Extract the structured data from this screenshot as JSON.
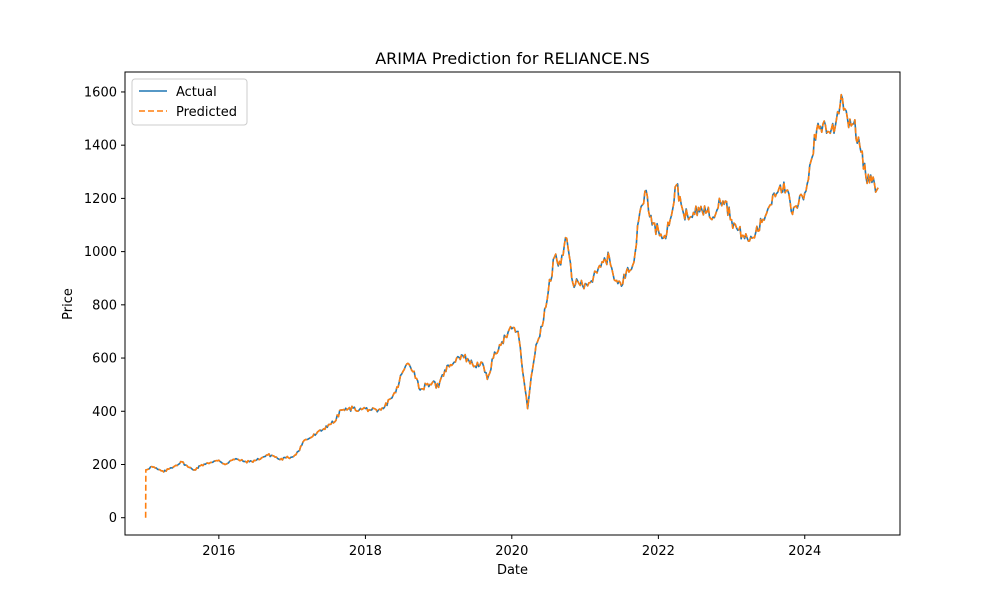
{
  "chart_data": {
    "type": "line",
    "title": "ARIMA Prediction for RELIANCE.NS",
    "xlabel": "Date",
    "ylabel": "Price",
    "xlim": [
      "2014-09-20",
      "2025-04-20"
    ],
    "ylim": [
      -65,
      1675
    ],
    "x_ticks": [
      "2016",
      "2018",
      "2020",
      "2022",
      "2024"
    ],
    "x_tick_dates": [
      "2016-01-01",
      "2018-01-01",
      "2020-01-01",
      "2022-01-01",
      "2024-01-01"
    ],
    "y_ticks": [
      0,
      200,
      400,
      600,
      800,
      1000,
      1200,
      1400,
      1600
    ],
    "grid": false,
    "legend_position": "upper left",
    "series": [
      {
        "name": "Actual",
        "color": "#1f77b4",
        "style": "solid",
        "points": [
          [
            "2015-01-01",
            180
          ],
          [
            "2015-02-01",
            192
          ],
          [
            "2015-03-01",
            182
          ],
          [
            "2015-04-01",
            172
          ],
          [
            "2015-05-01",
            185
          ],
          [
            "2015-06-01",
            197
          ],
          [
            "2015-07-01",
            210
          ],
          [
            "2015-08-01",
            190
          ],
          [
            "2015-09-01",
            180
          ],
          [
            "2015-10-01",
            195
          ],
          [
            "2015-11-01",
            205
          ],
          [
            "2015-12-01",
            208
          ],
          [
            "2016-01-01",
            216
          ],
          [
            "2016-02-01",
            200
          ],
          [
            "2016-03-01",
            215
          ],
          [
            "2016-04-01",
            220
          ],
          [
            "2016-05-01",
            212
          ],
          [
            "2016-06-01",
            210
          ],
          [
            "2016-07-01",
            215
          ],
          [
            "2016-08-01",
            225
          ],
          [
            "2016-09-01",
            236
          ],
          [
            "2016-10-01",
            232
          ],
          [
            "2016-11-01",
            218
          ],
          [
            "2016-12-01",
            225
          ],
          [
            "2017-01-01",
            228
          ],
          [
            "2017-02-01",
            250
          ],
          [
            "2017-03-01",
            290
          ],
          [
            "2017-04-01",
            300
          ],
          [
            "2017-05-01",
            315
          ],
          [
            "2017-06-01",
            330
          ],
          [
            "2017-07-01",
            350
          ],
          [
            "2017-08-01",
            360
          ],
          [
            "2017-09-01",
            405
          ],
          [
            "2017-10-01",
            405
          ],
          [
            "2017-11-01",
            412
          ],
          [
            "2017-12-01",
            405
          ],
          [
            "2018-01-01",
            410
          ],
          [
            "2018-02-01",
            405
          ],
          [
            "2018-03-01",
            398
          ],
          [
            "2018-04-01",
            410
          ],
          [
            "2018-05-01",
            445
          ],
          [
            "2018-06-01",
            470
          ],
          [
            "2018-07-01",
            540
          ],
          [
            "2018-08-01",
            580
          ],
          [
            "2018-09-01",
            550
          ],
          [
            "2018-10-01",
            480
          ],
          [
            "2018-11-01",
            500
          ],
          [
            "2018-12-01",
            508
          ],
          [
            "2019-01-01",
            490
          ],
          [
            "2019-02-01",
            555
          ],
          [
            "2019-03-01",
            575
          ],
          [
            "2019-04-01",
            600
          ],
          [
            "2019-05-01",
            610
          ],
          [
            "2019-06-01",
            590
          ],
          [
            "2019-07-01",
            570
          ],
          [
            "2019-08-01",
            585
          ],
          [
            "2019-09-01",
            520
          ],
          [
            "2019-10-01",
            600
          ],
          [
            "2019-11-01",
            650
          ],
          [
            "2019-12-01",
            680
          ],
          [
            "2020-01-01",
            710
          ],
          [
            "2020-02-01",
            700
          ],
          [
            "2020-03-01",
            520
          ],
          [
            "2020-03-20",
            410
          ],
          [
            "2020-04-01",
            490
          ],
          [
            "2020-05-01",
            650
          ],
          [
            "2020-06-01",
            720
          ],
          [
            "2020-07-01",
            850
          ],
          [
            "2020-08-01",
            980
          ],
          [
            "2020-09-01",
            950
          ],
          [
            "2020-10-01",
            1050
          ],
          [
            "2020-11-01",
            880
          ],
          [
            "2020-12-01",
            880
          ],
          [
            "2021-01-01",
            880
          ],
          [
            "2021-02-01",
            890
          ],
          [
            "2021-03-01",
            920
          ],
          [
            "2021-04-01",
            960
          ],
          [
            "2021-05-01",
            980
          ],
          [
            "2021-06-01",
            890
          ],
          [
            "2021-07-01",
            870
          ],
          [
            "2021-08-01",
            940
          ],
          [
            "2021-09-01",
            960
          ],
          [
            "2021-10-01",
            1150
          ],
          [
            "2021-11-01",
            1230
          ],
          [
            "2021-12-01",
            1100
          ],
          [
            "2022-01-01",
            1080
          ],
          [
            "2022-02-01",
            1060
          ],
          [
            "2022-03-01",
            1120
          ],
          [
            "2022-04-01",
            1250
          ],
          [
            "2022-05-01",
            1160
          ],
          [
            "2022-06-01",
            1120
          ],
          [
            "2022-07-01",
            1140
          ],
          [
            "2022-08-01",
            1170
          ],
          [
            "2022-09-01",
            1150
          ],
          [
            "2022-10-01",
            1130
          ],
          [
            "2022-11-01",
            1200
          ],
          [
            "2022-12-01",
            1190
          ],
          [
            "2023-01-01",
            1120
          ],
          [
            "2023-02-01",
            1080
          ],
          [
            "2023-03-01",
            1060
          ],
          [
            "2023-04-01",
            1040
          ],
          [
            "2023-05-01",
            1070
          ],
          [
            "2023-06-01",
            1110
          ],
          [
            "2023-07-01",
            1160
          ],
          [
            "2023-08-01",
            1220
          ],
          [
            "2023-09-01",
            1250
          ],
          [
            "2023-10-01",
            1230
          ],
          [
            "2023-11-01",
            1140
          ],
          [
            "2023-12-01",
            1180
          ],
          [
            "2024-01-01",
            1220
          ],
          [
            "2024-02-01",
            1340
          ],
          [
            "2024-03-01",
            1460
          ],
          [
            "2024-04-01",
            1480
          ],
          [
            "2024-05-01",
            1450
          ],
          [
            "2024-06-01",
            1470
          ],
          [
            "2024-07-01",
            1590
          ],
          [
            "2024-08-01",
            1500
          ],
          [
            "2024-09-01",
            1480
          ],
          [
            "2024-10-01",
            1400
          ],
          [
            "2024-11-01",
            1280
          ],
          [
            "2024-12-01",
            1260
          ],
          [
            "2025-01-01",
            1240
          ]
        ]
      },
      {
        "name": "Predicted",
        "color": "#ff7f0e",
        "style": "dashed",
        "points": [
          [
            "2015-01-01",
            0
          ],
          [
            "2015-01-02",
            180
          ],
          [
            "2015-02-01",
            192
          ],
          [
            "2015-03-01",
            182
          ],
          [
            "2015-04-01",
            172
          ],
          [
            "2015-05-01",
            185
          ],
          [
            "2015-06-01",
            197
          ],
          [
            "2015-07-01",
            210
          ],
          [
            "2015-08-01",
            190
          ],
          [
            "2015-09-01",
            180
          ],
          [
            "2015-10-01",
            195
          ],
          [
            "2015-11-01",
            205
          ],
          [
            "2015-12-01",
            208
          ],
          [
            "2016-01-01",
            216
          ],
          [
            "2016-02-01",
            200
          ],
          [
            "2016-03-01",
            215
          ],
          [
            "2016-04-01",
            220
          ],
          [
            "2016-05-01",
            212
          ],
          [
            "2016-06-01",
            210
          ],
          [
            "2016-07-01",
            215
          ],
          [
            "2016-08-01",
            225
          ],
          [
            "2016-09-01",
            236
          ],
          [
            "2016-10-01",
            232
          ],
          [
            "2016-11-01",
            218
          ],
          [
            "2016-12-01",
            225
          ],
          [
            "2017-01-01",
            228
          ],
          [
            "2017-02-01",
            250
          ],
          [
            "2017-03-01",
            290
          ],
          [
            "2017-04-01",
            300
          ],
          [
            "2017-05-01",
            315
          ],
          [
            "2017-06-01",
            330
          ],
          [
            "2017-07-01",
            350
          ],
          [
            "2017-08-01",
            360
          ],
          [
            "2017-09-01",
            405
          ],
          [
            "2017-10-01",
            405
          ],
          [
            "2017-11-01",
            412
          ],
          [
            "2017-12-01",
            405
          ],
          [
            "2018-01-01",
            410
          ],
          [
            "2018-02-01",
            405
          ],
          [
            "2018-03-01",
            398
          ],
          [
            "2018-04-01",
            410
          ],
          [
            "2018-05-01",
            445
          ],
          [
            "2018-06-01",
            470
          ],
          [
            "2018-07-01",
            540
          ],
          [
            "2018-08-01",
            580
          ],
          [
            "2018-09-01",
            550
          ],
          [
            "2018-10-01",
            480
          ],
          [
            "2018-11-01",
            500
          ],
          [
            "2018-12-01",
            508
          ],
          [
            "2019-01-01",
            490
          ],
          [
            "2019-02-01",
            555
          ],
          [
            "2019-03-01",
            575
          ],
          [
            "2019-04-01",
            600
          ],
          [
            "2019-05-01",
            610
          ],
          [
            "2019-06-01",
            590
          ],
          [
            "2019-07-01",
            570
          ],
          [
            "2019-08-01",
            585
          ],
          [
            "2019-09-01",
            520
          ],
          [
            "2019-10-01",
            600
          ],
          [
            "2019-11-01",
            650
          ],
          [
            "2019-12-01",
            680
          ],
          [
            "2020-01-01",
            710
          ],
          [
            "2020-02-01",
            700
          ],
          [
            "2020-03-01",
            520
          ],
          [
            "2020-03-20",
            410
          ],
          [
            "2020-04-01",
            490
          ],
          [
            "2020-05-01",
            650
          ],
          [
            "2020-06-01",
            720
          ],
          [
            "2020-07-01",
            850
          ],
          [
            "2020-08-01",
            980
          ],
          [
            "2020-09-01",
            950
          ],
          [
            "2020-10-01",
            1050
          ],
          [
            "2020-11-01",
            880
          ],
          [
            "2020-12-01",
            880
          ],
          [
            "2021-01-01",
            880
          ],
          [
            "2021-02-01",
            890
          ],
          [
            "2021-03-01",
            920
          ],
          [
            "2021-04-01",
            960
          ],
          [
            "2021-05-01",
            980
          ],
          [
            "2021-06-01",
            890
          ],
          [
            "2021-07-01",
            870
          ],
          [
            "2021-08-01",
            940
          ],
          [
            "2021-09-01",
            960
          ],
          [
            "2021-10-01",
            1150
          ],
          [
            "2021-11-01",
            1230
          ],
          [
            "2021-12-01",
            1100
          ],
          [
            "2022-01-01",
            1080
          ],
          [
            "2022-02-01",
            1060
          ],
          [
            "2022-03-01",
            1120
          ],
          [
            "2022-04-01",
            1250
          ],
          [
            "2022-05-01",
            1160
          ],
          [
            "2022-06-01",
            1120
          ],
          [
            "2022-07-01",
            1140
          ],
          [
            "2022-08-01",
            1170
          ],
          [
            "2022-09-01",
            1150
          ],
          [
            "2022-10-01",
            1130
          ],
          [
            "2022-11-01",
            1200
          ],
          [
            "2022-12-01",
            1190
          ],
          [
            "2023-01-01",
            1120
          ],
          [
            "2023-02-01",
            1080
          ],
          [
            "2023-03-01",
            1060
          ],
          [
            "2023-04-01",
            1040
          ],
          [
            "2023-05-01",
            1070
          ],
          [
            "2023-06-01",
            1110
          ],
          [
            "2023-07-01",
            1160
          ],
          [
            "2023-08-01",
            1220
          ],
          [
            "2023-09-01",
            1250
          ],
          [
            "2023-10-01",
            1230
          ],
          [
            "2023-11-01",
            1140
          ],
          [
            "2023-12-01",
            1180
          ],
          [
            "2024-01-01",
            1220
          ],
          [
            "2024-02-01",
            1340
          ],
          [
            "2024-03-01",
            1460
          ],
          [
            "2024-04-01",
            1480
          ],
          [
            "2024-05-01",
            1450
          ],
          [
            "2024-06-01",
            1470
          ],
          [
            "2024-07-01",
            1590
          ],
          [
            "2024-08-01",
            1500
          ],
          [
            "2024-09-01",
            1480
          ],
          [
            "2024-10-01",
            1400
          ],
          [
            "2024-11-01",
            1280
          ],
          [
            "2024-12-01",
            1260
          ],
          [
            "2025-01-01",
            1240
          ]
        ]
      }
    ]
  }
}
